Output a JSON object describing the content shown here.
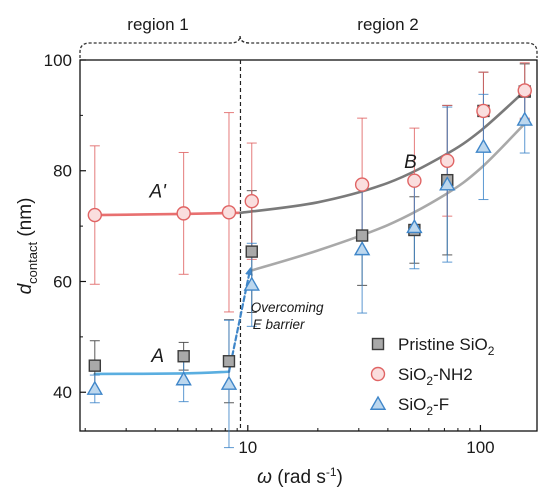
{
  "chart_data": {
    "type": "scatter",
    "xlabel": "ω (rad s⁻¹)",
    "ylabel": "d_contact (nm)",
    "xscale": "log",
    "xlim": [
      1.9,
      175
    ],
    "ylim": [
      33,
      100
    ],
    "xticks": [
      {
        "value": 10,
        "label": "10"
      },
      {
        "value": 100,
        "label": "100"
      }
    ],
    "yticks": [
      {
        "value": 40,
        "label": "40"
      },
      {
        "value": 60,
        "label": "60"
      },
      {
        "value": 80,
        "label": "80"
      },
      {
        "value": 100,
        "label": "100"
      }
    ],
    "regions": [
      {
        "label": "region 1",
        "from": 1.9,
        "to": 9.3
      },
      {
        "label": "region 2",
        "from": 9.3,
        "to": 175
      }
    ],
    "divider_x": 9.3,
    "series": [
      {
        "name": "Pristine SiO2",
        "marker": "square",
        "fill": "#a9a9a9",
        "stroke": "#3c3c3c",
        "points": [
          {
            "x": 2.2,
            "y": 44.8,
            "err": 4.5
          },
          {
            "x": 5.3,
            "y": 46.5,
            "err": 2.5
          },
          {
            "x": 8.3,
            "y": 45.6,
            "err": 7.5
          },
          {
            "x": 10.4,
            "y": 65.4,
            "err": 11.0
          },
          {
            "x": 31,
            "y": 68.3,
            "err": 9.0
          },
          {
            "x": 52,
            "y": 69.3,
            "err": 6.0
          },
          {
            "x": 72,
            "y": 78.3,
            "err": 13.5
          },
          {
            "x": 103,
            "y": 90.8,
            "err": 7.0
          },
          {
            "x": 155,
            "y": 94.3,
            "err": 5.0
          }
        ]
      },
      {
        "name": "SiO2-NH2",
        "marker": "circle",
        "fill": "#fadede",
        "stroke": "#e06464",
        "points": [
          {
            "x": 2.2,
            "y": 72.0,
            "err": 12.5
          },
          {
            "x": 5.3,
            "y": 72.3,
            "err": 11.0
          },
          {
            "x": 8.3,
            "y": 72.5,
            "err": 18.0
          },
          {
            "x": 10.4,
            "y": 74.5,
            "err": 10.5
          },
          {
            "x": 31,
            "y": 77.5,
            "err": 12.0
          },
          {
            "x": 52,
            "y": 78.2,
            "err": 9.5
          },
          {
            "x": 72,
            "y": 81.8,
            "err": 10.0
          },
          {
            "x": 103,
            "y": 90.8,
            "err": 7.0
          },
          {
            "x": 155,
            "y": 94.5,
            "err": 5.0
          }
        ]
      },
      {
        "name": "SiO2-F",
        "marker": "triangle",
        "fill": "#bcd7ee",
        "stroke": "#3f86c9",
        "points": [
          {
            "x": 2.2,
            "y": 40.6,
            "err": 2.5
          },
          {
            "x": 5.3,
            "y": 42.3,
            "err": 4.0
          },
          {
            "x": 8.3,
            "y": 41.5,
            "err": 11.5
          },
          {
            "x": 10.4,
            "y": 59.4,
            "err": 7.5
          },
          {
            "x": 31,
            "y": 65.8,
            "err": 11.5
          },
          {
            "x": 52,
            "y": 69.8,
            "err": 7.5
          },
          {
            "x": 72,
            "y": 77.5,
            "err": 14.0
          },
          {
            "x": 103,
            "y": 84.3,
            "err": 9.5
          },
          {
            "x": 155,
            "y": 89.2,
            "err": 6.0
          }
        ]
      }
    ],
    "fit_lines": [
      {
        "id": "A-prime",
        "color": "#e87070",
        "points": [
          [
            2.2,
            72.0
          ],
          [
            5.3,
            72.2
          ],
          [
            9.3,
            72.4
          ]
        ]
      },
      {
        "id": "B-upper",
        "color": "#7a7a7a",
        "points": [
          [
            9.3,
            72.4
          ],
          [
            20,
            74.3
          ],
          [
            40,
            77.8
          ],
          [
            70,
            82.8
          ],
          [
            100,
            87.2
          ],
          [
            155,
            94.4
          ]
        ]
      },
      {
        "id": "A",
        "color": "#5aaee0",
        "points": [
          [
            2.2,
            43.3
          ],
          [
            5.3,
            43.4
          ],
          [
            8.3,
            43.7
          ]
        ]
      },
      {
        "id": "B-lower",
        "color": "#a9a9a9",
        "points": [
          [
            10.2,
            61.9
          ],
          [
            20,
            65.6
          ],
          [
            40,
            70.2
          ],
          [
            70,
            75.6
          ],
          [
            100,
            80.4
          ],
          [
            155,
            88.5
          ]
        ]
      },
      {
        "id": "jump",
        "color": "#3f86c9",
        "dashed": true,
        "points": [
          [
            8.3,
            43.7
          ],
          [
            10.2,
            61.9
          ]
        ]
      }
    ],
    "annotations": [
      {
        "text": "A'",
        "x": 4.1,
        "y": 75.2
      },
      {
        "text": "B",
        "x": 50,
        "y": 80.5
      },
      {
        "text": "A",
        "x": 4.1,
        "y": 45.5
      },
      {
        "line1": "Overcoming",
        "line2": "E barrier",
        "x": 10.3,
        "y": 54.5
      }
    ],
    "legend": {
      "position": "lower-right"
    }
  }
}
